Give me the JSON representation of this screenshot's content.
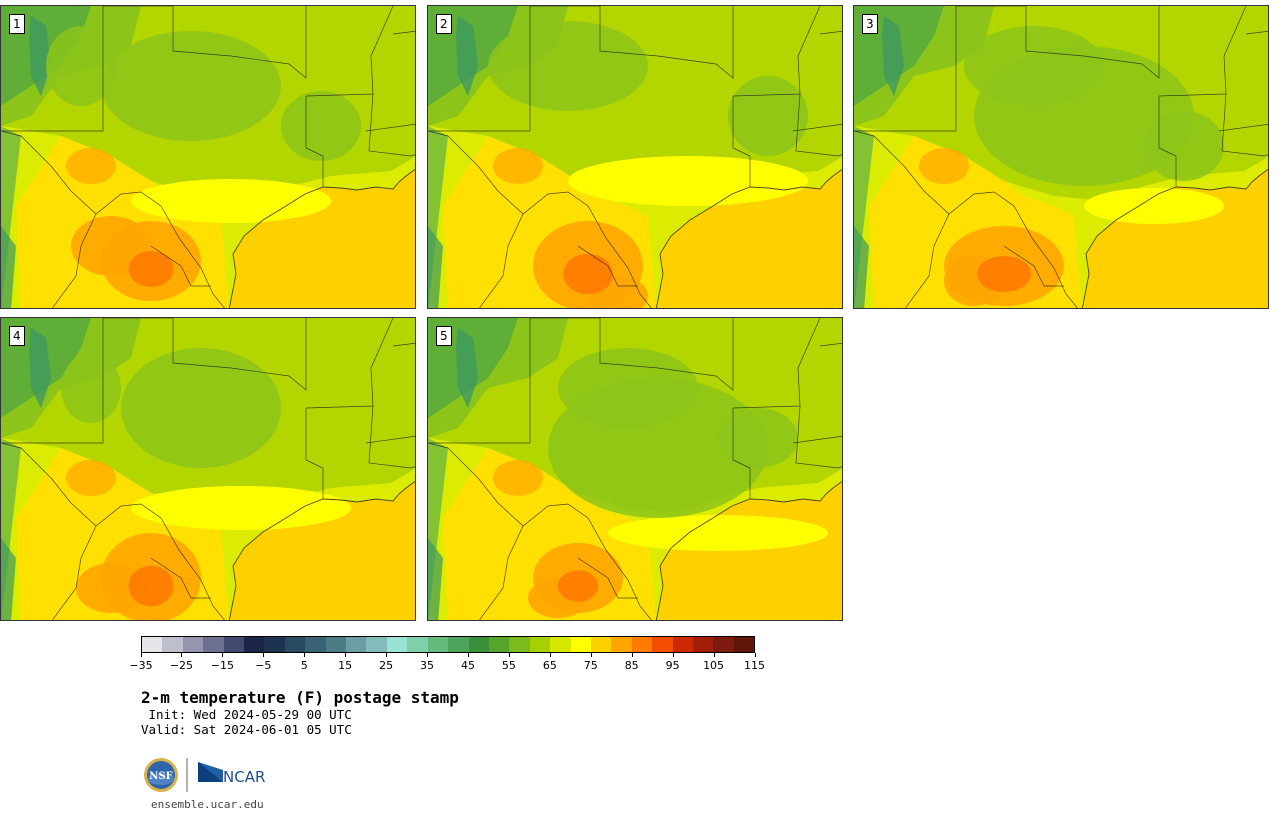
{
  "panels": [
    {
      "label": "1",
      "variant": 0
    },
    {
      "label": "2",
      "variant": 1
    },
    {
      "label": "3",
      "variant": 2
    },
    {
      "label": "4",
      "variant": 3
    },
    {
      "label": "5",
      "variant": 4
    }
  ],
  "colorbar": {
    "colors": [
      "#e6e6ea",
      "#bebfcc",
      "#9596ad",
      "#6c6f8f",
      "#434a70",
      "#1b2546",
      "#1d3350",
      "#2a4a62",
      "#3a6275",
      "#4d7b86",
      "#6b9ea3",
      "#82bbb9",
      "#98e3d4",
      "#7fcfaa",
      "#65b97d",
      "#4ea45a",
      "#3b8f3a",
      "#56a52a",
      "#7bbb1d",
      "#a6d100",
      "#d6e800",
      "#ffff00",
      "#ffd000",
      "#ffa500",
      "#ff7a00",
      "#f24d00",
      "#cc2a00",
      "#a31e0a",
      "#7f1a0f",
      "#5e1608"
    ],
    "tick_values": [
      "−35",
      "−25",
      "−15",
      "−5",
      "5",
      "15",
      "25",
      "35",
      "45",
      "55",
      "65",
      "75",
      "85",
      "95",
      "105",
      "115"
    ]
  },
  "title": "2-m temperature (F) postage stamp",
  "init": " Init: Wed 2024-05-29 00 UTC",
  "valid": "Valid: Sat 2024-06-01 05 UTC",
  "logos": {
    "nsf": "NSF",
    "ncar": "NCAR"
  },
  "site": "ensemble.ucar.edu"
}
